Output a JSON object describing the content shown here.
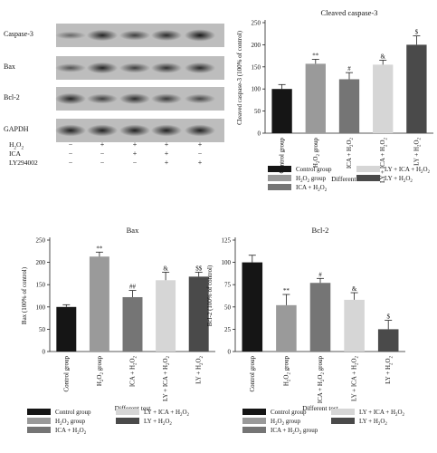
{
  "blot": {
    "rows": [
      "Caspase-3",
      "Bax",
      "Bcl-2",
      "GAPDH"
    ],
    "treatments": [
      {
        "label": "H2O2",
        "signs": [
          "−",
          "+",
          "+",
          "+",
          "+"
        ]
      },
      {
        "label": "ICA",
        "signs": [
          "−",
          "−",
          "+",
          "+",
          "−"
        ]
      },
      {
        "label": "LY294002",
        "signs": [
          "−",
          "−",
          "−",
          "+",
          "+"
        ]
      }
    ],
    "intensities": [
      [
        0.3,
        0.8,
        0.6,
        0.75,
        0.9
      ],
      [
        0.45,
        0.8,
        0.6,
        0.7,
        0.75
      ],
      [
        0.8,
        0.6,
        0.75,
        0.65,
        0.55
      ],
      [
        0.85,
        0.85,
        0.85,
        0.85,
        0.85
      ]
    ]
  },
  "chart_data": [
    {
      "type": "bar",
      "title": "Cleaved caspase-3",
      "xlabel": "Different test",
      "ylabel": "Cleaved caspase-3 (100% of control)",
      "categories": [
        "Control group",
        "H2O2 group",
        "ICA + H2O2",
        "LY + ICA + H2O2",
        "LY + H2O2"
      ],
      "values": [
        100,
        157,
        122,
        155,
        200
      ],
      "errors": [
        10,
        10,
        15,
        10,
        20
      ],
      "annotations": [
        "",
        "**",
        "#",
        "&",
        "$"
      ],
      "ylim": [
        0,
        250
      ],
      "yticks": [
        0,
        50,
        100,
        150,
        200,
        250
      ],
      "colors": [
        "#151515",
        "#9a9a9a",
        "#757575",
        "#d6d6d6",
        "#4a4a4a"
      ],
      "legend": [
        "Control group",
        "H2O2 group",
        "ICA + H2O2",
        "LY + ICA + H2O2",
        "LY + H2O2"
      ]
    },
    {
      "type": "bar",
      "title": "Bax",
      "xlabel": "Different test",
      "ylabel": "Bax (100% of control)",
      "categories": [
        "Control group",
        "H2O2 group",
        "ICA + H2O2",
        "LY + ICA + H2O2",
        "LY + H2O2"
      ],
      "values": [
        100,
        213,
        122,
        160,
        168
      ],
      "errors": [
        5,
        10,
        15,
        18,
        10
      ],
      "annotations": [
        "",
        "**",
        "##",
        "&",
        "$$"
      ],
      "ylim": [
        0,
        250
      ],
      "yticks": [
        0,
        50,
        100,
        150,
        200,
        250
      ],
      "colors": [
        "#151515",
        "#9a9a9a",
        "#757575",
        "#d6d6d6",
        "#4a4a4a"
      ],
      "legend": [
        "Control group",
        "H2O2 group",
        "ICA + H2O2",
        "LY + ICA + H2O2",
        "LY + H2O2"
      ]
    },
    {
      "type": "bar",
      "title": "Bcl-2",
      "xlabel": "Different test",
      "ylabel": "Bcl-2 (100% of control)",
      "categories": [
        "Control group",
        "H2O2 group",
        "ICA + H2O2 group",
        "LY + ICA + H2O2",
        "LY + H2O2"
      ],
      "values": [
        100,
        52,
        77,
        58,
        25
      ],
      "errors": [
        8,
        12,
        5,
        8,
        10
      ],
      "annotations": [
        "",
        "**",
        "#",
        "&",
        "$"
      ],
      "ylim": [
        0,
        125
      ],
      "yticks": [
        0,
        25,
        50,
        75,
        100,
        125
      ],
      "colors": [
        "#151515",
        "#9a9a9a",
        "#757575",
        "#d6d6d6",
        "#4a4a4a"
      ],
      "legend": [
        "Control group",
        "H2O2 group",
        "ICA + H2O2 group",
        "LY + ICA + H2O2",
        "LY + H2O2"
      ]
    }
  ]
}
